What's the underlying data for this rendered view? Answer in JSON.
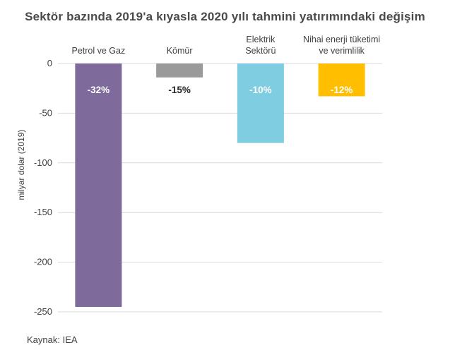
{
  "chart_data": {
    "type": "bar",
    "title": "Sektör bazında 2019'a kıyasla 2020 yılı tahmini yatırımındaki  değişim",
    "ylabel": "milyar dolar (2019)",
    "xlabel": "",
    "ylim": [
      -250,
      0
    ],
    "yticks": [
      0,
      -50,
      -100,
      -150,
      -200,
      -250
    ],
    "grid": true,
    "categories": [
      [
        "Petrol ve Gaz"
      ],
      [
        "Kömür"
      ],
      [
        "Elektrik",
        "Sektörü"
      ],
      [
        "Nihai enerji tüketimi",
        "ve verimlilik"
      ]
    ],
    "values": [
      -245,
      -14,
      -80,
      -33
    ],
    "data_labels": [
      "-32%",
      "-15%",
      "-10%",
      "-12%"
    ],
    "colors": [
      "#7e6b9c",
      "#9a9a9a",
      "#7ecde0",
      "#ffbe00"
    ],
    "label_colors": [
      "#ffffff",
      "#262626",
      "#ffffff",
      "#ffffff"
    ]
  },
  "source": "Kaynak: IEA"
}
